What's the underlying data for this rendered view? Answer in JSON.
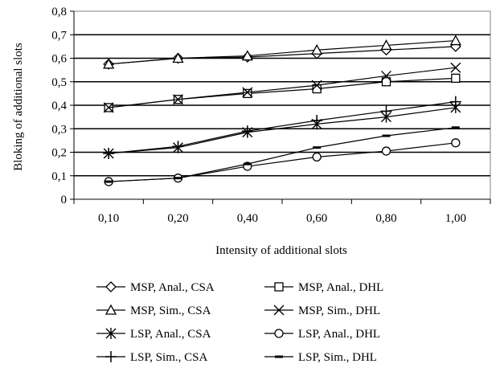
{
  "chart_data": {
    "type": "line",
    "title": "",
    "xlabel": "Intensity of additional slots",
    "ylabel": "Bloking of additional slots",
    "categories": [
      "0,10",
      "0,20",
      "0,40",
      "0,60",
      "0,80",
      "1,00"
    ],
    "y_ticks": [
      "0",
      "0,1",
      "0,2",
      "0,3",
      "0,4",
      "0,5",
      "0,6",
      "0,7",
      "0,8"
    ],
    "ylim": [
      0,
      0.8
    ],
    "grid": "horizontal",
    "legend_position": "bottom",
    "series": [
      {
        "name": "MSP, Anal., CSA",
        "marker": "diamond",
        "values": [
          0.575,
          0.6,
          0.605,
          0.62,
          0.635,
          0.65
        ]
      },
      {
        "name": "MSP, Anal., DHL",
        "marker": "square",
        "values": [
          0.39,
          0.425,
          0.45,
          0.47,
          0.5,
          0.515
        ]
      },
      {
        "name": "MSP, Sim., CSA",
        "marker": "triangle",
        "values": [
          0.575,
          0.6,
          0.61,
          0.635,
          0.655,
          0.675
        ]
      },
      {
        "name": "MSP, Sim., DHL",
        "marker": "x",
        "values": [
          0.39,
          0.425,
          0.455,
          0.485,
          0.525,
          0.56
        ]
      },
      {
        "name": "LSP, Anal., CSA",
        "marker": "asterisk",
        "values": [
          0.195,
          0.22,
          0.285,
          0.32,
          0.35,
          0.39
        ]
      },
      {
        "name": "LSP, Anal., DHL",
        "marker": "circle",
        "values": [
          0.075,
          0.09,
          0.14,
          0.18,
          0.205,
          0.24
        ]
      },
      {
        "name": "LSP, Sim., CSA",
        "marker": "plus",
        "values": [
          0.195,
          0.225,
          0.29,
          0.335,
          0.375,
          0.415
        ]
      },
      {
        "name": "LSP, Sim., DHL",
        "marker": "dash",
        "values": [
          0.075,
          0.09,
          0.15,
          0.22,
          0.27,
          0.305
        ]
      }
    ]
  }
}
